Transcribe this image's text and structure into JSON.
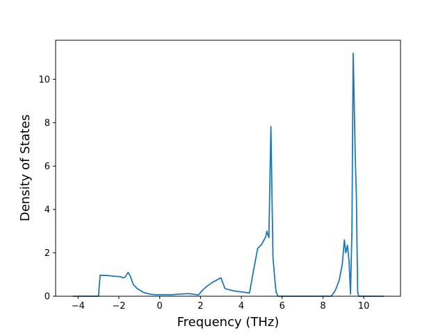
{
  "chart_data": {
    "type": "line",
    "title": "",
    "xlabel": "Frequency (THz)",
    "ylabel": "Density of States",
    "xlim": [
      -5.1,
      11.8
    ],
    "ylim": [
      0,
      11.8
    ],
    "xticks": [
      -4,
      -2,
      0,
      2,
      4,
      6,
      8,
      10
    ],
    "xtick_labels": [
      "−4",
      "−2",
      "0",
      "2",
      "4",
      "6",
      "8",
      "10"
    ],
    "yticks": [
      0,
      2,
      4,
      6,
      8,
      10
    ],
    "ytick_labels": [
      "0",
      "2",
      "4",
      "6",
      "8",
      "10"
    ],
    "grid": false,
    "series": [
      {
        "color": "#1f77b4",
        "x": [
          -4.25,
          -3.0,
          -2.92,
          -2.5,
          -2.2,
          -1.9,
          -1.8,
          -1.7,
          -1.6,
          -1.55,
          -1.45,
          -1.3,
          -1.1,
          -0.8,
          -0.5,
          -0.2,
          0.2,
          0.6,
          1.0,
          1.4,
          1.6,
          1.9,
          2.1,
          2.3,
          2.6,
          3.0,
          3.2,
          3.6,
          4.0,
          4.4,
          4.6,
          4.8,
          5.0,
          5.2,
          5.25,
          5.35,
          5.45,
          5.55,
          5.62,
          5.7,
          5.8,
          6.5,
          7.5,
          8.4,
          8.6,
          8.8,
          8.95,
          9.05,
          9.12,
          9.2,
          9.28,
          9.35,
          9.42,
          9.48,
          9.52,
          9.58,
          9.64,
          9.7,
          9.75,
          10.2,
          11.0
        ],
        "y": [
          0,
          0,
          0.97,
          0.95,
          0.92,
          0.9,
          0.85,
          0.88,
          1.02,
          1.1,
          0.95,
          0.55,
          0.35,
          0.18,
          0.1,
          0.07,
          0.07,
          0.07,
          0.1,
          0.12,
          0.1,
          0.06,
          0.28,
          0.45,
          0.65,
          0.85,
          0.35,
          0.25,
          0.2,
          0.15,
          1.2,
          2.2,
          2.4,
          2.75,
          3.0,
          2.7,
          7.82,
          1.8,
          1.0,
          0.2,
          0,
          0,
          0,
          0,
          0.25,
          0.75,
          1.5,
          2.6,
          2.0,
          2.35,
          1.6,
          0.1,
          3.0,
          11.2,
          9.5,
          6.5,
          4.5,
          0.2,
          0,
          0,
          0
        ]
      }
    ]
  }
}
